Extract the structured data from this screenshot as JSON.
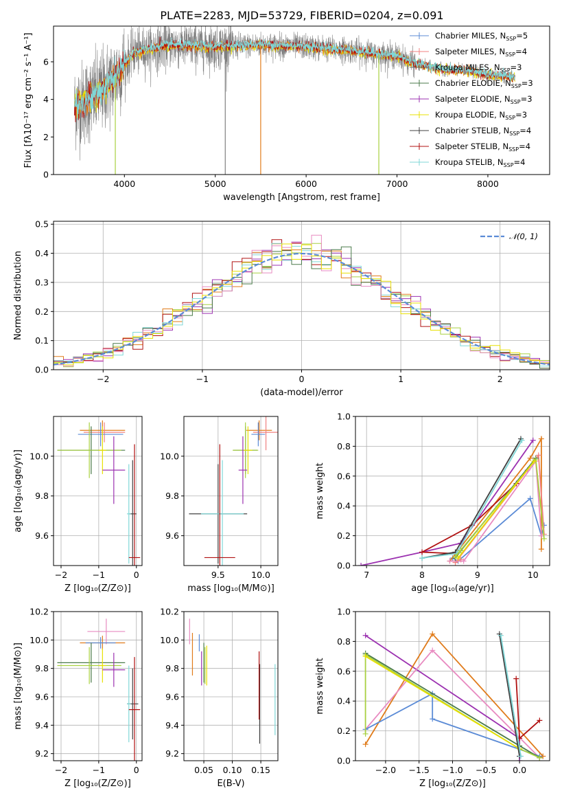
{
  "colors": {
    "Chabrier MILES": "#5b8bd6",
    "Salpeter MILES": "#f08080",
    "Kroupa MILES": "#6a6a6a",
    "Chabrier ELODIE": "#4a7a4a",
    "Salpeter ELODIE": "#9b30b0",
    "Kroupa ELODIE": "#e8e000",
    "Chabrier STELIB": "#404040",
    "Salpeter STELIB": "#b01010",
    "Kroupa STELIB": "#7fd7d7",
    "extra_orange": "#e07b1a",
    "extra_pink": "#e88ac0",
    "extra_lime": "#a8d040"
  },
  "chart_data": [
    {
      "id": "spectrum",
      "type": "line",
      "title": "PLATE=2283, MJD=53729, FIBERID=0204, z=0.091",
      "xlabel": "wavelength [Angstrom, rest frame]",
      "ylabel": "Flux [fλ10⁻¹⁷ erg cm⁻² s⁻¹ A⁻¹]",
      "xlim": [
        3220,
        8680
      ],
      "ylim": [
        0,
        7.9
      ],
      "xticks": [
        4000,
        5000,
        6000,
        7000,
        8000
      ],
      "yticks": [
        0,
        2,
        4,
        6
      ],
      "grid": false,
      "legend_position": "top-right",
      "legend": [
        {
          "label": "Chabrier MILES, N",
          "sub": "SSP",
          "suffix": "=5"
        },
        {
          "label": "Salpeter MILES, N",
          "sub": "SSP",
          "suffix": "=4"
        },
        {
          "label": "Kroupa MILES, N",
          "sub": "SSP",
          "suffix": "=3"
        },
        {
          "label": "Chabrier ELODIE, N",
          "sub": "SSP",
          "suffix": "=3"
        },
        {
          "label": "Salpeter ELODIE, N",
          "sub": "SSP",
          "suffix": "=3"
        },
        {
          "label": "Kroupa ELODIE, N",
          "sub": "SSP",
          "suffix": "=3"
        },
        {
          "label": "Chabrier STELIB, N",
          "sub": "SSP",
          "suffix": "=4"
        },
        {
          "label": "Salpeter STELIB, N",
          "sub": "SSP",
          "suffix": "=4"
        },
        {
          "label": "Kroupa STELIB, N",
          "sub": "SSP",
          "suffix": "=4"
        }
      ],
      "model_continuum": {
        "x": [
          3450,
          3700,
          3900,
          4100,
          4300,
          4500,
          5000,
          5500,
          6000,
          6500,
          6800,
          7000,
          7200,
          7500,
          7800,
          8000,
          8200,
          8300
        ],
        "y": [
          3.6,
          4.2,
          5.2,
          6.5,
          6.7,
          6.9,
          6.8,
          6.9,
          6.8,
          6.6,
          6.4,
          6.3,
          5.9,
          5.6,
          5.5,
          5.3,
          5.2,
          5.2
        ]
      },
      "data_range_x": [
        3450,
        8300
      ],
      "dips": [
        {
          "x": 3900,
          "y": 0
        },
        {
          "x": 5110,
          "y": 0
        },
        {
          "x": 5500,
          "y": 0
        },
        {
          "x": 6800,
          "y": 0
        }
      ]
    },
    {
      "id": "residuals",
      "type": "line",
      "xlabel": "(data-model)/error",
      "ylabel": "Normed distribution",
      "xlim": [
        -2.5,
        2.5
      ],
      "ylim": [
        0,
        0.51
      ],
      "xticks": [
        -2,
        -1,
        0,
        1,
        2
      ],
      "yticks": [
        0.0,
        0.1,
        0.2,
        0.3,
        0.4,
        0.5
      ],
      "grid": true,
      "legend_position": "top-right",
      "legend": [
        {
          "label": "𝒩(0, 1)",
          "style": "dashed"
        }
      ],
      "gaussian": {
        "mean": 0,
        "sigma": 1,
        "color": "#5b8bd6"
      },
      "histogram_bin_width": 0.1
    },
    {
      "id": "age_vs_Z",
      "type": "scatter",
      "xlabel": "Z [log₁₀(Z/Z⊙)]",
      "ylabel": "age  [log₁₀(age/yr)]",
      "xlim": [
        -2.2,
        0.15
      ],
      "ylim": [
        9.45,
        10.2
      ],
      "xticks": [
        -2,
        -1,
        0
      ],
      "yticks": [
        9.6,
        9.8,
        10.0
      ],
      "grid": true,
      "points": [
        {
          "x": -0.9,
          "y": 10.13,
          "xerr": 0.6,
          "yerr": 0.05,
          "color": "#e07b1a"
        },
        {
          "x": -0.85,
          "y": 10.12,
          "xerr": 0.55,
          "yerr": 0.05,
          "color": "#f08080"
        },
        {
          "x": -0.95,
          "y": 10.11,
          "xerr": 0.6,
          "yerr": 0.06,
          "color": "#5b8bd6"
        },
        {
          "x": -1.2,
          "y": 10.03,
          "xerr": 0.9,
          "yerr": 0.12,
          "color": "#4a7a4a"
        },
        {
          "x": -1.25,
          "y": 10.03,
          "xerr": 0.85,
          "yerr": 0.14,
          "color": "#a8d040"
        },
        {
          "x": -0.9,
          "y": 10.03,
          "xerr": 0.1,
          "yerr": 0.12,
          "color": "#e8e000"
        },
        {
          "x": -0.6,
          "y": 9.93,
          "xerr": 0.3,
          "yerr": 0.17,
          "color": "#9b30b0"
        },
        {
          "x": -0.1,
          "y": 9.71,
          "xerr": 0.1,
          "yerr": 0.27,
          "color": "#404040"
        },
        {
          "x": -0.2,
          "y": 9.71,
          "xerr": 0.05,
          "yerr": 0.25,
          "color": "#7fd7d7"
        },
        {
          "x": -0.05,
          "y": 9.49,
          "xerr": 0.15,
          "yerr": 0.57,
          "color": "#b01010"
        }
      ]
    },
    {
      "id": "age_vs_mass",
      "type": "scatter",
      "xlabel": "mass [log₁₀(M/M⊙)]",
      "ylabel": "",
      "xlim": [
        9.1,
        10.2
      ],
      "ylim": [
        9.45,
        10.2
      ],
      "xticks": [
        9.5,
        10.0
      ],
      "yticks": [
        9.6,
        9.8,
        10.0
      ],
      "grid": true,
      "points": [
        {
          "x": 9.98,
          "y": 10.13,
          "xerr": 0.15,
          "yerr": 0.05,
          "color": "#e07b1a"
        },
        {
          "x": 10.06,
          "y": 10.12,
          "xerr": 0.15,
          "yerr": 0.09,
          "color": "#f08080"
        },
        {
          "x": 9.97,
          "y": 10.11,
          "xerr": 0.08,
          "yerr": 0.06,
          "color": "#5b8bd6"
        },
        {
          "x": 9.82,
          "y": 10.03,
          "xerr": 0.14,
          "yerr": 0.12,
          "color": "#4a7a4a"
        },
        {
          "x": 9.82,
          "y": 10.03,
          "xerr": 0.15,
          "yerr": 0.14,
          "color": "#a8d040"
        },
        {
          "x": 9.85,
          "y": 10.03,
          "xerr": 0.05,
          "yerr": 0.12,
          "color": "#e8e000"
        },
        {
          "x": 9.79,
          "y": 9.93,
          "xerr": 0.05,
          "yerr": 0.17,
          "color": "#9b30b0"
        },
        {
          "x": 9.5,
          "y": 9.71,
          "xerr": 0.34,
          "yerr": 0.25,
          "color": "#404040"
        },
        {
          "x": 9.55,
          "y": 9.71,
          "xerr": 0.25,
          "yerr": 0.27,
          "color": "#7fd7d7"
        },
        {
          "x": 9.52,
          "y": 9.49,
          "xerr": 0.18,
          "yerr": 0.57,
          "color": "#b01010"
        }
      ]
    },
    {
      "id": "weight_vs_age",
      "type": "line",
      "xlabel": "age  [log₁₀(age/yr)]",
      "ylabel": "mass weight",
      "xlim": [
        6.8,
        10.3
      ],
      "ylim": [
        0,
        1.0
      ],
      "xticks": [
        7,
        8,
        9,
        10
      ],
      "yticks": [
        0.0,
        0.2,
        0.4,
        0.6,
        0.8,
        1.0
      ],
      "grid": true,
      "series": [
        {
          "color": "#5b8bd6",
          "x": [
            10.2,
            10.15,
            9.95,
            8.65,
            8.55
          ],
          "y": [
            0.27,
            0.2,
            0.45,
            0.03,
            0.05
          ]
        },
        {
          "color": "#e07b1a",
          "x": [
            10.15,
            10.15,
            9.95,
            8.5,
            8.6
          ],
          "y": [
            0.11,
            0.85,
            0.72,
            0.03,
            0.03
          ]
        },
        {
          "color": "#f08080",
          "x": [
            10.2,
            10.1,
            9.9,
            8.6,
            8.7
          ],
          "y": [
            0.21,
            0.74,
            0.64,
            0.02,
            0.04
          ]
        },
        {
          "color": "#e88ac0",
          "x": [
            10.15,
            10.05,
            8.75,
            8.5
          ],
          "y": [
            0.2,
            0.7,
            0.03,
            0.03
          ]
        },
        {
          "color": "#9b30b0",
          "x": [
            10.0,
            8.7,
            8.0,
            6.9
          ],
          "y": [
            0.84,
            0.15,
            0.09,
            0.0
          ]
        },
        {
          "color": "#b01010",
          "x": [
            9.7,
            8.9,
            8.0,
            8.6
          ],
          "y": [
            0.55,
            0.27,
            0.09,
            0.08
          ]
        },
        {
          "color": "#404040",
          "x": [
            9.78,
            8.6,
            8.0
          ],
          "y": [
            0.85,
            0.09,
            0.05
          ]
        },
        {
          "color": "#7fd7d7",
          "x": [
            9.8,
            8.62,
            8.0
          ],
          "y": [
            0.84,
            0.08,
            0.05
          ]
        },
        {
          "color": "#4a7a4a",
          "x": [
            10.05,
            8.7,
            8.6
          ],
          "y": [
            0.72,
            0.1,
            0.05
          ]
        },
        {
          "color": "#a8d040",
          "x": [
            10.2,
            10.05,
            8.6,
            8.7
          ],
          "y": [
            0.18,
            0.71,
            0.06,
            0.1
          ]
        },
        {
          "color": "#e8e000",
          "x": [
            10.02,
            8.65
          ],
          "y": [
            0.7,
            0.05
          ]
        }
      ]
    },
    {
      "id": "mass_vs_Z",
      "type": "scatter",
      "xlabel": "Z [log₁₀(Z/Z⊙)]",
      "ylabel": "mass [log₁₀(M/M⊙)]",
      "xlim": [
        -2.2,
        0.15
      ],
      "ylim": [
        9.15,
        10.2
      ],
      "xticks": [
        -2,
        -1,
        0
      ],
      "yticks": [
        9.2,
        9.4,
        9.6,
        9.8,
        10.0,
        10.2
      ],
      "grid": true,
      "points": [
        {
          "x": -0.8,
          "y": 10.06,
          "xerr": 0.5,
          "yerr": 0.09,
          "color": "#e88ac0"
        },
        {
          "x": -0.9,
          "y": 9.98,
          "xerr": 0.6,
          "yerr": 0.05,
          "color": "#e07b1a"
        },
        {
          "x": -0.95,
          "y": 9.98,
          "xerr": 0.4,
          "yerr": 0.04,
          "color": "#5b8bd6"
        },
        {
          "x": -1.2,
          "y": 9.84,
          "xerr": 0.9,
          "yerr": 0.14,
          "color": "#4a7a4a"
        },
        {
          "x": -1.25,
          "y": 9.82,
          "xerr": 0.85,
          "yerr": 0.13,
          "color": "#a8d040"
        },
        {
          "x": -0.9,
          "y": 9.82,
          "xerr": 0.1,
          "yerr": 0.12,
          "color": "#e8e000"
        },
        {
          "x": -0.6,
          "y": 9.79,
          "xerr": 0.3,
          "yerr": 0.12,
          "color": "#9b30b0"
        },
        {
          "x": -0.1,
          "y": 9.55,
          "xerr": 0.15,
          "yerr": 0.25,
          "color": "#404040"
        },
        {
          "x": -0.2,
          "y": 9.55,
          "xerr": 0.05,
          "yerr": 0.27,
          "color": "#7fd7d7"
        },
        {
          "x": -0.05,
          "y": 9.51,
          "xerr": 0.15,
          "yerr": 0.37,
          "color": "#b01010"
        }
      ]
    },
    {
      "id": "mass_vs_EBV",
      "type": "scatter",
      "xlabel": "E(B-V)",
      "ylabel": "",
      "xlim": [
        0.015,
        0.18
      ],
      "ylim": [
        9.15,
        10.2
      ],
      "xticks": [
        0.05,
        0.1,
        0.15
      ],
      "yticks": [
        9.2,
        9.4,
        9.6,
        9.8,
        10.0,
        10.2
      ],
      "grid": true,
      "points": [
        {
          "x": 0.025,
          "y": 10.06,
          "yerr": 0.09,
          "color": "#e88ac0"
        },
        {
          "x": 0.03,
          "y": 9.9,
          "yerr": 0.15,
          "color": "#e07b1a"
        },
        {
          "x": 0.042,
          "y": 9.98,
          "yerr": 0.06,
          "color": "#5b8bd6"
        },
        {
          "x": 0.05,
          "y": 9.84,
          "yerr": 0.14,
          "color": "#4a7a4a"
        },
        {
          "x": 0.052,
          "y": 9.82,
          "yerr": 0.13,
          "color": "#a8d040"
        },
        {
          "x": 0.055,
          "y": 9.82,
          "yerr": 0.14,
          "color": "#e8e000"
        },
        {
          "x": 0.046,
          "y": 9.8,
          "yerr": 0.12,
          "color": "#9b30b0"
        },
        {
          "x": 0.148,
          "y": 9.55,
          "yerr": 0.28,
          "color": "#404040"
        },
        {
          "x": 0.175,
          "y": 9.58,
          "yerr": 0.25,
          "color": "#7fd7d7"
        },
        {
          "x": 0.147,
          "y": 9.68,
          "yerr": 0.24,
          "color": "#b01010"
        }
      ]
    },
    {
      "id": "weight_vs_Z",
      "type": "line",
      "xlabel": "Z [log₁₀(Z/Z⊙)]",
      "ylabel": "mass weight",
      "xlim": [
        -2.45,
        0.45
      ],
      "ylim": [
        0,
        1.0
      ],
      "xticks": [
        -2.0,
        -1.5,
        -1.0,
        -0.5,
        0.0
      ],
      "yticks": [
        0.0,
        0.2,
        0.4,
        0.6,
        0.8,
        1.0
      ],
      "grid": true,
      "series": [
        {
          "color": "#9b30b0",
          "x": [
            -2.3,
            0.0,
            0.0
          ],
          "y": [
            0.84,
            0.15,
            0.0
          ]
        },
        {
          "color": "#e07b1a",
          "x": [
            -2.3,
            -1.3,
            0.35,
            0.3
          ],
          "y": [
            0.11,
            0.85,
            0.03,
            0.02
          ]
        },
        {
          "color": "#e88ac0",
          "x": [
            -2.3,
            -1.3,
            0.3
          ],
          "y": [
            0.21,
            0.74,
            0.02
          ]
        },
        {
          "color": "#5b8bd6",
          "x": [
            -2.3,
            -1.3,
            -1.3,
            0.3
          ],
          "y": [
            0.21,
            0.45,
            0.28,
            0.03
          ]
        },
        {
          "color": "#4a7a4a",
          "x": [
            -2.3,
            0.0,
            0.3
          ],
          "y": [
            0.72,
            0.1,
            0.02
          ]
        },
        {
          "color": "#a8d040",
          "x": [
            -2.3,
            -2.3,
            0.0,
            0.3
          ],
          "y": [
            0.18,
            0.71,
            0.08,
            0.02
          ]
        },
        {
          "color": "#e8e000",
          "x": [
            -2.3,
            0.0
          ],
          "y": [
            0.7,
            0.08
          ]
        },
        {
          "color": "#b01010",
          "x": [
            -0.05,
            0.0,
            0.3
          ],
          "y": [
            0.55,
            0.15,
            0.27
          ]
        },
        {
          "color": "#404040",
          "x": [
            -0.3,
            0.0
          ],
          "y": [
            0.85,
            0.03
          ]
        },
        {
          "color": "#7fd7d7",
          "x": [
            -0.28,
            0.02
          ],
          "y": [
            0.84,
            0.03
          ]
        }
      ]
    }
  ]
}
